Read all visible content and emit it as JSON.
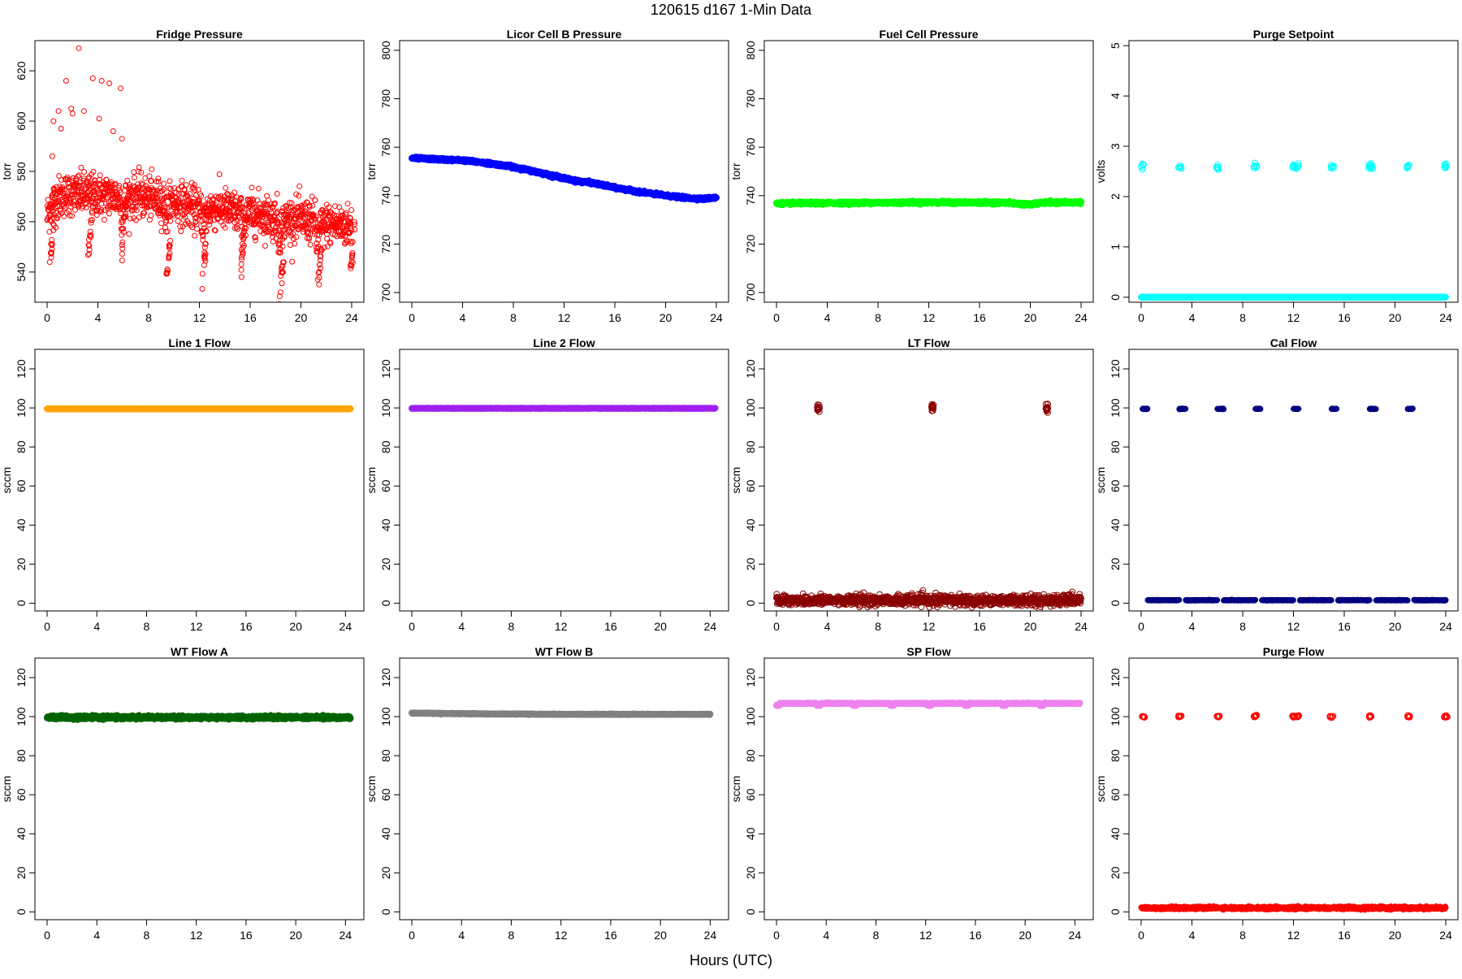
{
  "figure": {
    "title": "120615   d167   1-Min Data",
    "xlabel": "Hours (UTC)"
  },
  "chart_data": [
    {
      "type": "scatter",
      "title": "Fridge Pressure",
      "ylabel": "torr",
      "color": "#ff0000",
      "xlim": [
        0,
        24
      ],
      "ylim": [
        528,
        632
      ],
      "xticks": [
        0,
        4,
        8,
        12,
        16,
        20,
        24
      ],
      "yticks": [
        540,
        560,
        580,
        600,
        620
      ],
      "series": [
        {
          "kind": "noisy_sawtooth",
          "x_start": 0,
          "x_end": 24,
          "n": 1300,
          "filled": false,
          "marker_size": 3,
          "segments": [
            [
              0,
              5.8,
              572,
              570
            ],
            [
              5.8,
              9.3,
              572,
              568
            ],
            [
              9.3,
              12.2,
              570,
              564
            ],
            [
              12.2,
              15.3,
              567,
              563
            ],
            [
              15.3,
              18.2,
              565,
              561
            ],
            [
              18.2,
              21.2,
              562,
              560
            ],
            [
              21.2,
              24,
              560,
              558
            ]
          ],
          "noise": 6,
          "dips": [
            [
              0.2,
              543
            ],
            [
              3.2,
              545
            ],
            [
              5.9,
              548
            ],
            [
              9.4,
              536
            ],
            [
              12.2,
              535
            ],
            [
              15.3,
              543
            ],
            [
              18.3,
              530
            ],
            [
              21.3,
              532
            ],
            [
              23.9,
              541
            ]
          ],
          "outliers": [
            [
              0.5,
              600
            ],
            [
              0.9,
              604
            ],
            [
              1.5,
              616
            ],
            [
              1.9,
              605
            ],
            [
              2.5,
              629
            ],
            [
              2.9,
              604
            ],
            [
              3.6,
              617
            ],
            [
              4.1,
              601
            ],
            [
              4.3,
              616
            ],
            [
              4.9,
              615
            ],
            [
              5.2,
              596
            ],
            [
              5.8,
              613
            ],
            [
              5.9,
              593
            ],
            [
              0.4,
              586
            ],
            [
              1.1,
              597
            ],
            [
              2.0,
              603
            ]
          ]
        }
      ]
    },
    {
      "type": "scatter",
      "title": "Licor Cell B Pressure",
      "ylabel": "torr",
      "color": "#0000ff",
      "xlim": [
        0,
        24
      ],
      "ylim": [
        696,
        804
      ],
      "xticks": [
        0,
        4,
        8,
        12,
        16,
        20,
        24
      ],
      "yticks": [
        700,
        720,
        740,
        760,
        780,
        800
      ],
      "series": [
        {
          "kind": "curve",
          "n": 1440,
          "filled": true,
          "marker_size": 3.5,
          "noise": 0.25,
          "points": [
            [
              0,
              755.5
            ],
            [
              2,
              755
            ],
            [
              4,
              754.6
            ],
            [
              6,
              753.4
            ],
            [
              8,
              751.9
            ],
            [
              10,
              749.6
            ],
            [
              12,
              747.2
            ],
            [
              13,
              746
            ],
            [
              14,
              745.5
            ],
            [
              16,
              743.3
            ],
            [
              18,
              741.5
            ],
            [
              20,
              740
            ],
            [
              22,
              738.9
            ],
            [
              23,
              738.7
            ],
            [
              24,
              739.2
            ]
          ]
        }
      ]
    },
    {
      "type": "scatter",
      "title": "Fuel Cell Pressure",
      "ylabel": "torr",
      "color": "#00ff00",
      "xlim": [
        0,
        24
      ],
      "ylim": [
        696,
        804
      ],
      "xticks": [
        0,
        4,
        8,
        12,
        16,
        20,
        24
      ],
      "yticks": [
        700,
        720,
        740,
        760,
        780,
        800
      ],
      "series": [
        {
          "kind": "curve",
          "n": 1440,
          "filled": true,
          "marker_size": 3.5,
          "noise": 0.25,
          "points": [
            [
              0,
              736.8
            ],
            [
              6,
              737
            ],
            [
              12,
              737.2
            ],
            [
              18,
              737.1
            ],
            [
              20,
              736.3
            ],
            [
              21,
              737.1
            ],
            [
              24,
              737.2
            ]
          ]
        }
      ]
    },
    {
      "type": "scatter",
      "title": "Purge Setpoint",
      "ylabel": "volts",
      "color": "#00ffff",
      "xlim": [
        0,
        24
      ],
      "ylim": [
        -0.1,
        5.1
      ],
      "xticks": [
        0,
        4,
        8,
        12,
        16,
        20,
        24
      ],
      "yticks": [
        0,
        1,
        2,
        3,
        4,
        5
      ],
      "series": [
        {
          "kind": "constant",
          "y": 0,
          "x_start": 0,
          "x_end": 24,
          "n": 1440,
          "filled": true,
          "marker_size": 3.5,
          "noise": 0
        },
        {
          "kind": "bursts",
          "y": 2.6,
          "noise": 0.03,
          "filled": false,
          "marker_size": 3.5,
          "centers": [
            0.1,
            3.05,
            6.0,
            9.0,
            12.05,
            12.3,
            15.05,
            18.0,
            18.2,
            21.0,
            24.0
          ],
          "width": 0.25,
          "count": 7
        }
      ]
    },
    {
      "type": "scatter",
      "title": "Line 1 Flow",
      "ylabel": "sccm",
      "color": "#ffa500",
      "xlim": [
        0,
        24.5
      ],
      "ylim": [
        -4,
        130
      ],
      "xticks": [
        0,
        4,
        8,
        12,
        16,
        20,
        24
      ],
      "yticks": [
        0,
        20,
        40,
        60,
        80,
        100,
        120
      ],
      "series": [
        {
          "kind": "constant",
          "y": 99.5,
          "x_start": 0,
          "x_end": 24.4,
          "n": 1440,
          "filled": true,
          "marker_size": 3.5,
          "noise": 0.05
        }
      ]
    },
    {
      "type": "scatter",
      "title": "Line 2 Flow",
      "ylabel": "sccm",
      "color": "#a020f0",
      "xlim": [
        0,
        24.5
      ],
      "ylim": [
        -4,
        130
      ],
      "xticks": [
        0,
        4,
        8,
        12,
        16,
        20,
        24
      ],
      "yticks": [
        0,
        20,
        40,
        60,
        80,
        100,
        120
      ],
      "series": [
        {
          "kind": "constant",
          "y": 99.8,
          "x_start": 0,
          "x_end": 24.4,
          "n": 1440,
          "filled": true,
          "marker_size": 3.5,
          "noise": 0.05
        }
      ]
    },
    {
      "type": "scatter",
      "title": "LT Flow",
      "ylabel": "sccm",
      "color": "#8b0000",
      "xlim": [
        0,
        24
      ],
      "ylim": [
        -4,
        130
      ],
      "xticks": [
        0,
        4,
        8,
        12,
        16,
        20,
        24
      ],
      "yticks": [
        0,
        20,
        40,
        60,
        80,
        100,
        120
      ],
      "series": [
        {
          "kind": "constant",
          "y": 1.5,
          "x_start": 0,
          "x_end": 24,
          "n": 1200,
          "filled": false,
          "marker_size": 3.5,
          "noise": 1.3
        },
        {
          "kind": "bursts",
          "y": 99.8,
          "noise": 1.2,
          "filled": false,
          "marker_size": 3.5,
          "centers": [
            3.3,
            12.3,
            21.3
          ],
          "width": 0.18,
          "count": 14
        }
      ]
    },
    {
      "type": "scatter",
      "title": "Cal Flow",
      "ylabel": "sccm",
      "color": "#000080",
      "xlim": [
        0,
        24
      ],
      "ylim": [
        -4,
        130
      ],
      "xticks": [
        0,
        4,
        8,
        12,
        16,
        20,
        24
      ],
      "yticks": [
        0,
        20,
        40,
        60,
        80,
        100,
        120
      ],
      "series": [
        {
          "kind": "constant_gaps",
          "y": 1.5,
          "x_start": 0.2,
          "x_end": 24,
          "n": 1440,
          "filled": true,
          "marker_size": 3,
          "noise": 0.1,
          "gaps": [
            [
              0.1,
              0.5
            ],
            [
              3.0,
              3.5
            ],
            [
              6.0,
              6.5
            ],
            [
              9.0,
              9.5
            ],
            [
              12.0,
              12.5
            ],
            [
              15.0,
              15.5
            ],
            [
              18.0,
              18.5
            ],
            [
              21.0,
              21.5
            ]
          ]
        },
        {
          "kind": "bars",
          "y": 99.5,
          "filled": true,
          "marker_size": 3,
          "noise": 0.1,
          "ranges": [
            [
              0.1,
              0.5
            ],
            [
              3.0,
              3.5
            ],
            [
              6.0,
              6.5
            ],
            [
              9.0,
              9.4
            ],
            [
              12.0,
              12.4
            ],
            [
              15.0,
              15.4
            ],
            [
              18.0,
              18.5
            ],
            [
              21.0,
              21.4
            ]
          ]
        }
      ]
    },
    {
      "type": "scatter",
      "title": "WT Flow A",
      "ylabel": "sccm",
      "color": "#006400",
      "xlim": [
        0,
        24.5
      ],
      "ylim": [
        -4,
        130
      ],
      "xticks": [
        0,
        4,
        8,
        12,
        16,
        20,
        24
      ],
      "yticks": [
        0,
        20,
        40,
        60,
        80,
        100,
        120
      ],
      "series": [
        {
          "kind": "constant",
          "y": 99.6,
          "x_start": 0,
          "x_end": 24.4,
          "n": 1440,
          "filled": true,
          "marker_size": 3.5,
          "noise": 0.4
        }
      ]
    },
    {
      "type": "scatter",
      "title": "WT Flow B",
      "ylabel": "sccm",
      "color": "#808080",
      "xlim": [
        0,
        24.5
      ],
      "ylim": [
        -4,
        130
      ],
      "xticks": [
        0,
        4,
        8,
        12,
        16,
        20,
        24
      ],
      "yticks": [
        0,
        20,
        40,
        60,
        80,
        100,
        120
      ],
      "series": [
        {
          "kind": "curve",
          "n": 1440,
          "filled": true,
          "marker_size": 3.5,
          "noise": 0.1,
          "points": [
            [
              0,
              101.8
            ],
            [
              6,
              101.4
            ],
            [
              12,
              101.2
            ],
            [
              24,
              101.2
            ]
          ]
        }
      ]
    },
    {
      "type": "scatter",
      "title": "SP Flow",
      "ylabel": "sccm",
      "color": "#ee82ee",
      "xlim": [
        0,
        24.5
      ],
      "ylim": [
        -4,
        130
      ],
      "xticks": [
        0,
        4,
        8,
        12,
        16,
        20,
        24
      ],
      "yticks": [
        0,
        20,
        40,
        60,
        80,
        100,
        120
      ],
      "series": [
        {
          "kind": "constant_dips",
          "y": 106.8,
          "x_start": 0,
          "x_end": 24.4,
          "n": 1440,
          "filled": true,
          "marker_size": 3.5,
          "noise": 0.1,
          "dips": [
            0.1,
            3.4,
            6.3,
            9.3,
            12.3,
            15.3,
            18.3,
            21.3
          ],
          "dip_y": 105.8,
          "dip_width": 0.3
        }
      ]
    },
    {
      "type": "scatter",
      "title": "Purge Flow",
      "ylabel": "sccm",
      "color": "#ff0000",
      "xlim": [
        0,
        24
      ],
      "ylim": [
        -4,
        130
      ],
      "xticks": [
        0,
        4,
        8,
        12,
        16,
        20,
        24
      ],
      "yticks": [
        0,
        20,
        40,
        60,
        80,
        100,
        120
      ],
      "series": [
        {
          "kind": "constant",
          "y": 2.0,
          "x_start": 0,
          "x_end": 24,
          "n": 1440,
          "filled": true,
          "marker_size": 3,
          "noise": 0.35
        },
        {
          "kind": "bursts",
          "y": 100.1,
          "noise": 0.25,
          "filled": false,
          "marker_size": 3.5,
          "centers": [
            0.15,
            3.05,
            6.05,
            9.0,
            12.0,
            12.3,
            15.0,
            18.05,
            21.05,
            24.0
          ],
          "width": 0.25,
          "count": 8
        }
      ]
    }
  ]
}
